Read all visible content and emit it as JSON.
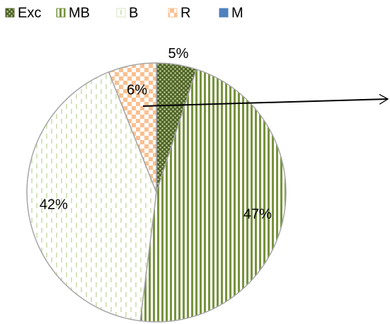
{
  "chart_data": {
    "type": "pie",
    "categories": [
      "Exc",
      "MB",
      "B",
      "R",
      "M"
    ],
    "values": [
      5,
      47,
      42,
      6,
      0
    ],
    "value_labels": [
      "5%",
      "47%",
      "42%",
      "6%",
      null
    ],
    "colors": [
      "#4f6228",
      "#77933c",
      "#d7e4bd",
      "#fac090",
      "#4f81bd"
    ],
    "legend": "top"
  }
}
